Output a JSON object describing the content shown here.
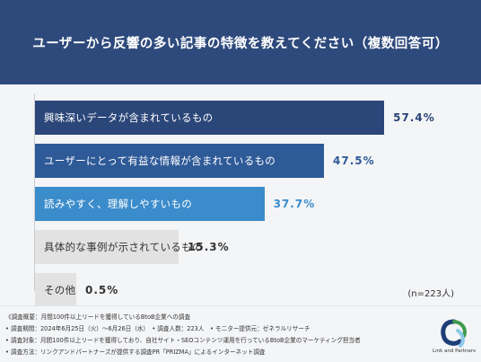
{
  "title": "ユーザーから反響の多い記事の特徴を教えてください（複数回答可）",
  "sample_size": "(n=223人)",
  "chart_data": {
    "type": "bar",
    "orientation": "horizontal",
    "categories": [
      "興味深いデータが含まれているもの",
      "ユーザーにとって有益な情報が含まれているもの",
      "読みやすく、理解しやすいもの",
      "具体的な事例が示されているもの",
      "その他"
    ],
    "values": [
      57.4,
      47.5,
      37.7,
      15.3,
      0.5
    ],
    "value_labels": [
      "57.4%",
      "47.5%",
      "37.7%",
      "15.3%",
      "0.5%"
    ],
    "unit": "%",
    "bar_colors": [
      "#2b4679",
      "#2e5a98",
      "#3b8ccb",
      "#e2e2e2",
      "#e2e2e2"
    ],
    "label_colors": [
      "#ffffff",
      "#ffffff",
      "#ffffff",
      "#333333",
      "#333333"
    ],
    "value_colors": [
      "#2b4679",
      "#2e5a98",
      "#3b8ccb",
      "#333333",
      "#333333"
    ],
    "xlim": [
      0,
      100
    ],
    "grid": false,
    "legend": "none"
  },
  "notes": [
    "《調査概要：月間100件以上リードを獲得しているBtoB企業への調査",
    "• 調査期間：2024年6月25日（火）〜6月26日（水）　• 調査人数：223人　• モニター提供元：ゼネラルリサーチ",
    "• 調査対象：月間100件以上リードを獲得しており、自社サイト・SEOコンテンツ運用を行っているBtoB企業のマーケティング担当者",
    "• 調査方法：リンクアンドパートナーズが提供する調査PR「PRIZMA」によるインターネット調査"
  ],
  "logo": {
    "text": "Link and Partners",
    "colors": [
      "#1e3e78",
      "#3e9a4e",
      "#8ec9e8"
    ]
  }
}
